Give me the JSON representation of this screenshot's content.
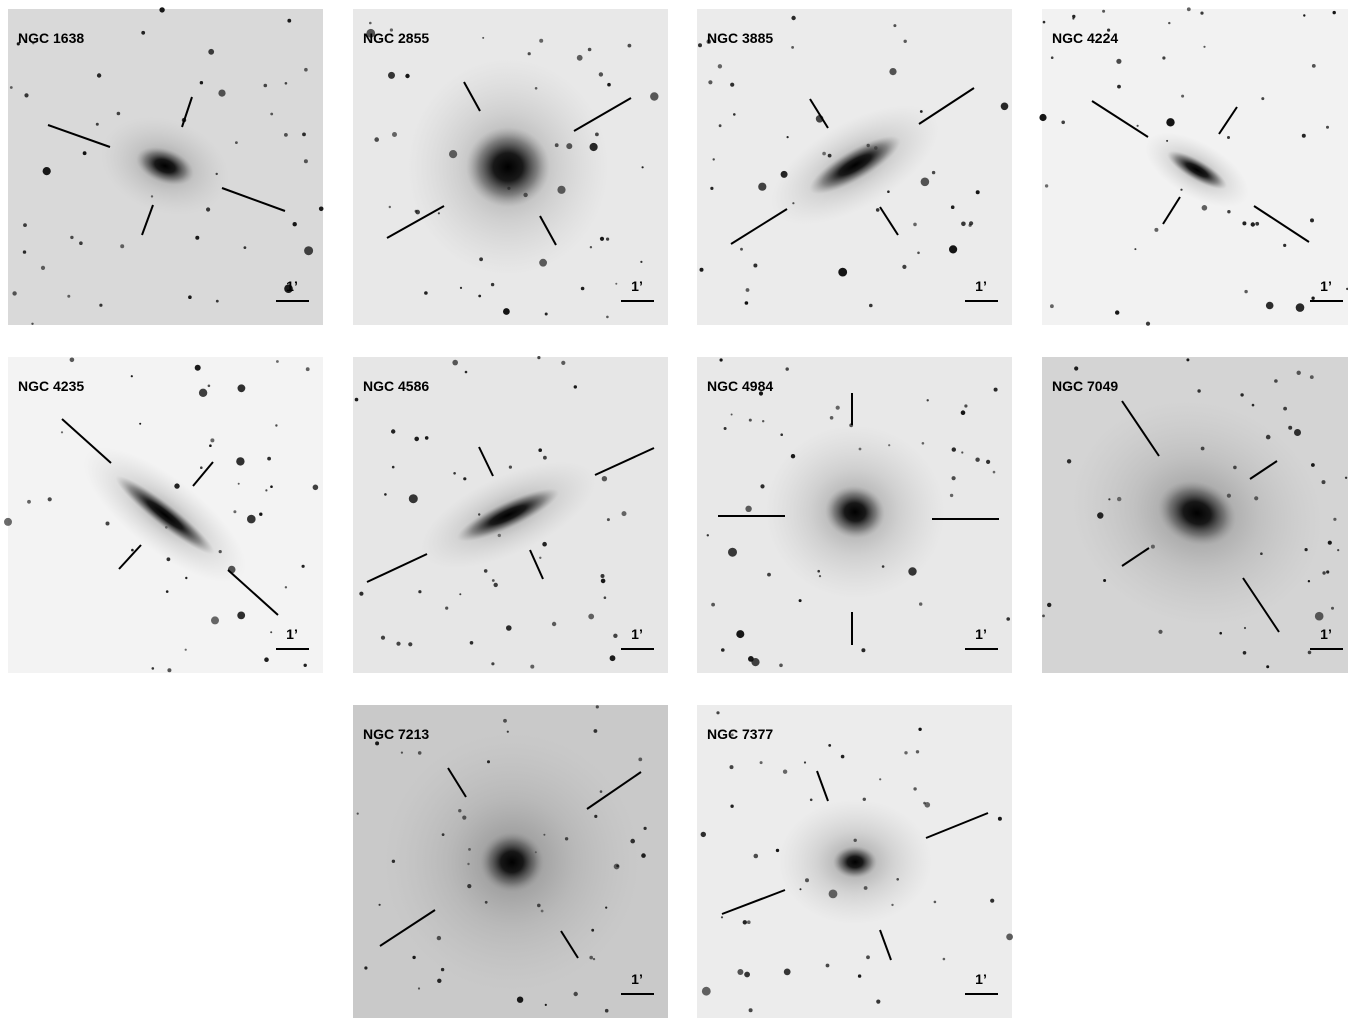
{
  "panels": [
    {
      "name": "NGC 1638",
      "scale": "1’"
    },
    {
      "name": "NGC 2855",
      "scale": "1’"
    },
    {
      "name": "NGC 3885",
      "scale": "1’"
    },
    {
      "name": "NGC 4224",
      "scale": "1’"
    },
    {
      "name": "NGC 4235",
      "scale": "1’"
    },
    {
      "name": "NGC 4586",
      "scale": "1’"
    },
    {
      "name": "NGC 4984",
      "scale": "1’"
    },
    {
      "name": "NGC 7049",
      "scale": "1’"
    },
    {
      "name": "NGC 7213",
      "scale": "1’"
    },
    {
      "name": "NGC 7377",
      "scale": "1’"
    }
  ]
}
